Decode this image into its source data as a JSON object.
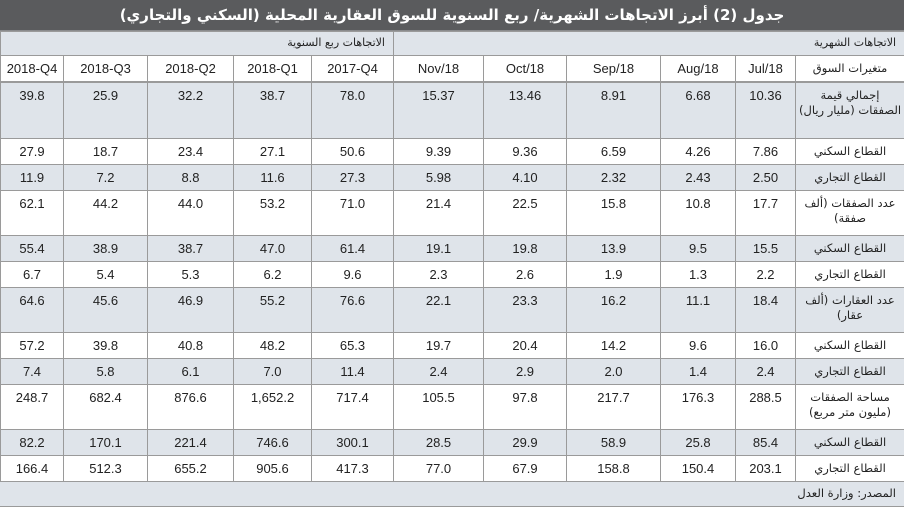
{
  "title": "جدول (2) أبرز الاتجاهات الشهرية/ ربع السنوية للسوق العقارية المحلية (السكني والتجاري)",
  "groups": {
    "monthly": "الاتجاهات الشهرية",
    "quarterly": "الاتجاهات ربع السنوية"
  },
  "columns": {
    "variable_header": "متغيرات السوق",
    "monthly": [
      "Jul/18",
      "Aug/18",
      "Sep/18",
      "Oct/18",
      "Nov/18"
    ],
    "quarterly": [
      "2017-Q4",
      "2018-Q1",
      "2018-Q2",
      "2018-Q3",
      "2018-Q4"
    ]
  },
  "rows": [
    {
      "label": "إجمالي قيمة الصفقات (مليار ريال)",
      "monthly": [
        "10.36",
        "6.68",
        "8.91",
        "13.46",
        "15.37"
      ],
      "quarterly": [
        "78.0",
        "38.7",
        "32.2",
        "25.9",
        "39.8"
      ]
    },
    {
      "label": "القطاع السكني",
      "monthly": [
        "7.86",
        "4.26",
        "6.59",
        "9.36",
        "9.39"
      ],
      "quarterly": [
        "50.6",
        "27.1",
        "23.4",
        "18.7",
        "27.9"
      ]
    },
    {
      "label": "القطاع التجاري",
      "monthly": [
        "2.50",
        "2.43",
        "2.32",
        "4.10",
        "5.98"
      ],
      "quarterly": [
        "27.3",
        "11.6",
        "8.8",
        "7.2",
        "11.9"
      ]
    },
    {
      "label": "عدد الصفقات (ألف صفقة)",
      "monthly": [
        "17.7",
        "10.8",
        "15.8",
        "22.5",
        "21.4"
      ],
      "quarterly": [
        "71.0",
        "53.2",
        "44.0",
        "44.2",
        "62.1"
      ]
    },
    {
      "label": "القطاع السكني",
      "monthly": [
        "15.5",
        "9.5",
        "13.9",
        "19.8",
        "19.1"
      ],
      "quarterly": [
        "61.4",
        "47.0",
        "38.7",
        "38.9",
        "55.4"
      ]
    },
    {
      "label": "القطاع التجاري",
      "monthly": [
        "2.2",
        "1.3",
        "1.9",
        "2.6",
        "2.3"
      ],
      "quarterly": [
        "9.6",
        "6.2",
        "5.3",
        "5.4",
        "6.7"
      ]
    },
    {
      "label": "عدد العقارات (ألف عقار)",
      "monthly": [
        "18.4",
        "11.1",
        "16.2",
        "23.3",
        "22.1"
      ],
      "quarterly": [
        "76.6",
        "55.2",
        "46.9",
        "45.6",
        "64.6"
      ]
    },
    {
      "label": "القطاع السكني",
      "monthly": [
        "16.0",
        "9.6",
        "14.2",
        "20.4",
        "19.7"
      ],
      "quarterly": [
        "65.3",
        "48.2",
        "40.8",
        "39.8",
        "57.2"
      ]
    },
    {
      "label": "القطاع التجاري",
      "monthly": [
        "2.4",
        "1.4",
        "2.0",
        "2.9",
        "2.4"
      ],
      "quarterly": [
        "11.4",
        "7.0",
        "6.1",
        "5.8",
        "7.4"
      ]
    },
    {
      "label": "مساحة الصفقات (مليون متر مربع)",
      "monthly": [
        "288.5",
        "176.3",
        "217.7",
        "97.8",
        "105.5"
      ],
      "quarterly": [
        "717.4",
        "1,652.2",
        "876.6",
        "682.4",
        "248.7"
      ]
    },
    {
      "label": "القطاع السكني",
      "monthly": [
        "85.4",
        "25.8",
        "58.9",
        "29.9",
        "28.5"
      ],
      "quarterly": [
        "300.1",
        "746.6",
        "221.4",
        "170.1",
        "82.2"
      ]
    },
    {
      "label": "القطاع التجاري",
      "monthly": [
        "203.1",
        "150.4",
        "158.8",
        "67.9",
        "77.0"
      ],
      "quarterly": [
        "417.3",
        "905.6",
        "655.2",
        "512.3",
        "166.4"
      ]
    }
  ],
  "source": "المصدر: وزارة العدل",
  "colors": {
    "title_bg": "#5a5b5d",
    "shade_bg": "#dfe4ea",
    "border": "#9a9a9a"
  }
}
